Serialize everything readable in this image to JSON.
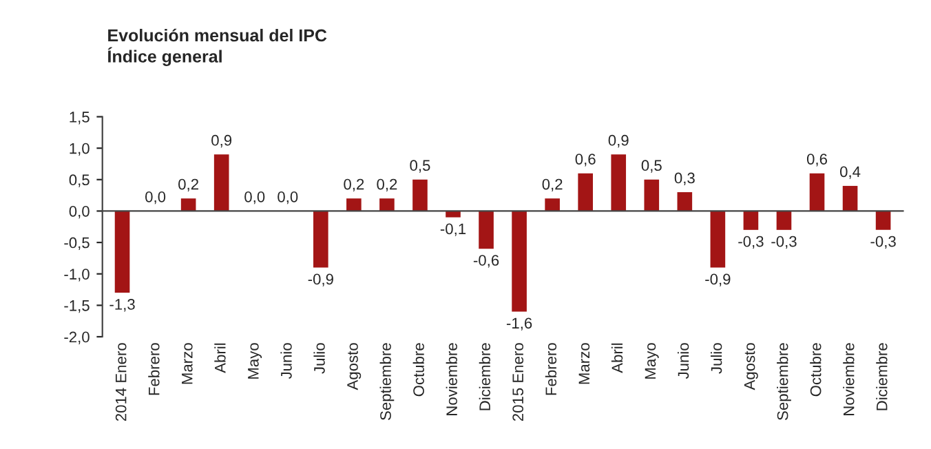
{
  "chart_data": {
    "type": "bar",
    "title": "Evolución mensual del IPC",
    "subtitle": "Índice general",
    "categories": [
      "2014 Enero",
      "Febrero",
      "Marzo",
      "Abril",
      "Mayo",
      "Junio",
      "Julio",
      "Agosto",
      "Septiembre",
      "Octubre",
      "Noviembre",
      "Diciembre",
      "2015 Enero",
      "Febrero",
      "Marzo",
      "Abril",
      "Mayo",
      "Junio",
      "Julio",
      "Agosto",
      "Septiembre",
      "Octubre",
      "Noviembre",
      "Diciembre"
    ],
    "values": [
      -1.3,
      0.0,
      0.2,
      0.9,
      0.0,
      0.0,
      -0.9,
      0.2,
      0.2,
      0.5,
      -0.1,
      -0.6,
      -1.6,
      0.2,
      0.6,
      0.9,
      0.5,
      0.3,
      -0.9,
      -0.3,
      -0.3,
      0.6,
      0.4,
      -0.3
    ],
    "value_labels": [
      "-1,3",
      "0,0",
      "0,2",
      "0,9",
      "0,0",
      "0,0",
      "-0,9",
      "0,2",
      "0,2",
      "0,5",
      "-0,1",
      "-0,6",
      "-1,6",
      "0,2",
      "0,6",
      "0,9",
      "0,5",
      "0,3",
      "-0,9",
      "-0,3",
      "-0,3",
      "0,6",
      "0,4",
      "-0,3"
    ],
    "color": "#a31515",
    "ylim": [
      -2.0,
      1.5
    ],
    "yticks": [
      {
        "value": -2.0,
        "label": "-2,0"
      },
      {
        "value": -1.5,
        "label": "-1,5"
      },
      {
        "value": -1.0,
        "label": "-1,0"
      },
      {
        "value": -0.5,
        "label": "-0,5"
      },
      {
        "value": 0.0,
        "label": "0,0"
      },
      {
        "value": 0.5,
        "label": "0,5"
      },
      {
        "value": 1.0,
        "label": "1,0"
      },
      {
        "value": 1.5,
        "label": "1,5"
      }
    ],
    "legend": false
  }
}
